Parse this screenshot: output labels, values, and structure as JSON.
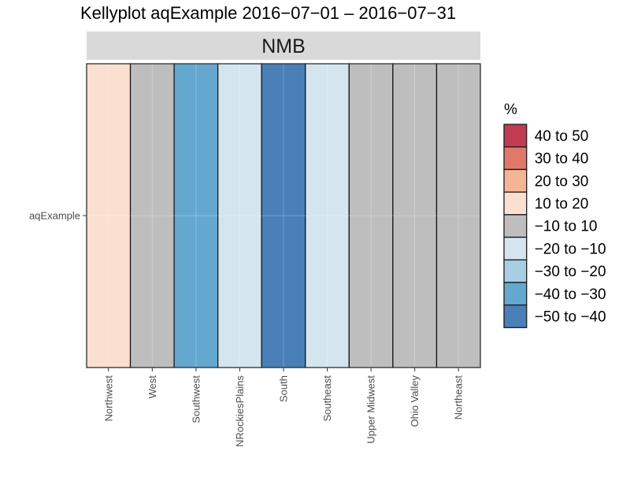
{
  "chart_data": {
    "type": "heatmap",
    "title": "Kellyplot aqExample 2016−07−01 – 2016−07−31",
    "facet": "NMB",
    "y_categories": [
      "aqExample"
    ],
    "x_categories": [
      "Northwest",
      "West",
      "Southwest",
      "NRockiesPlains",
      "South",
      "Southeast",
      "Upper Midwest",
      "Ohio Valley",
      "Northeast"
    ],
    "cells": [
      {
        "x": "Northwest",
        "y": "aqExample",
        "bin": "10 to 20"
      },
      {
        "x": "West",
        "y": "aqExample",
        "bin": "−10 to 10"
      },
      {
        "x": "Southwest",
        "y": "aqExample",
        "bin": "−40 to −30"
      },
      {
        "x": "NRockiesPlains",
        "y": "aqExample",
        "bin": "−20 to −10"
      },
      {
        "x": "South",
        "y": "aqExample",
        "bin": "−50 to −40"
      },
      {
        "x": "Southeast",
        "y": "aqExample",
        "bin": "−20 to −10"
      },
      {
        "x": "Upper Midwest",
        "y": "aqExample",
        "bin": "−10 to 10"
      },
      {
        "x": "Ohio Valley",
        "y": "aqExample",
        "bin": "−10 to 10"
      },
      {
        "x": "Northeast",
        "y": "aqExample",
        "bin": "−10 to 10"
      }
    ],
    "legend": {
      "title": "%",
      "position": "right",
      "items": [
        {
          "label": "40 to 50",
          "color": "#c13c52"
        },
        {
          "label": "30 to 40",
          "color": "#df7a6a"
        },
        {
          "label": "20 to 30",
          "color": "#f3b596"
        },
        {
          "label": "10 to 20",
          "color": "#fbdfd0"
        },
        {
          "label": "−10 to 10",
          "color": "#bebebe"
        },
        {
          "label": "−20 to −10",
          "color": "#d4e5f0"
        },
        {
          "label": "−30 to −20",
          "color": "#a7cee3"
        },
        {
          "label": "−40 to −30",
          "color": "#64a7cf"
        },
        {
          "label": "−50 to −40",
          "color": "#4a7fb8"
        }
      ]
    },
    "grid": true
  }
}
